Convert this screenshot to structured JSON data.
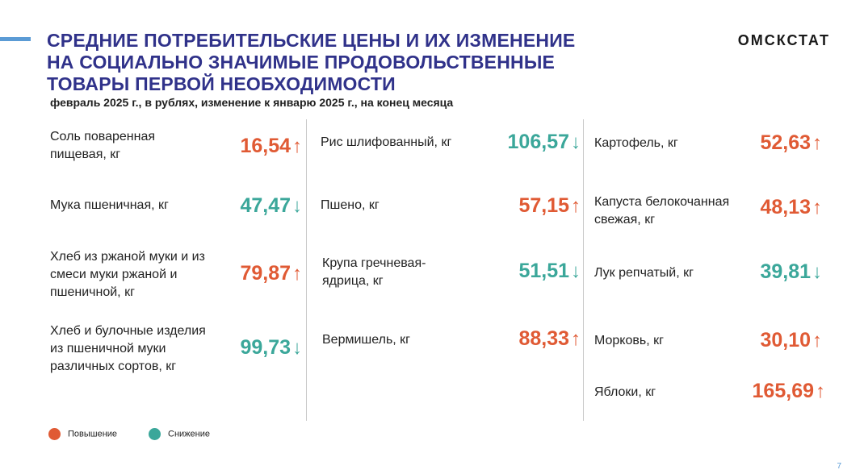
{
  "header": {
    "title_lines": [
      "СРЕДНИЕ ПОТРЕБИТЕЛЬСКИЕ ЦЕНЫ И ИХ ИЗМЕНЕНИЕ",
      "НА СОЦИАЛЬНО ЗНАЧИМЫЕ ПРОДОВОЛЬСТВЕННЫЕ",
      "ТОВАРЫ ПЕРВОЙ НЕОБХОДИМОСТИ"
    ],
    "brand": "ОМСКСТАТ",
    "subtitle": "февраль 2025 г., в рублях, изменение к январю 2025 г., на конец месяца"
  },
  "colors": {
    "title": "#30328a",
    "up": "#e05a34",
    "down": "#3ba79a",
    "accent": "#5b9bd5"
  },
  "columns": [
    {
      "items": [
        {
          "name": "Соль поваренная пищевая, кг",
          "price": "16,54",
          "direction": "up",
          "arrow": "↑"
        },
        {
          "name": "Мука пшеничная, кг",
          "price": "47,47",
          "direction": "down",
          "arrow": "↓"
        },
        {
          "name": "Хлеб из ржаной муки и из смеси муки ржаной и пшеничной, кг",
          "price": "79,87",
          "direction": "up",
          "arrow": "↑"
        },
        {
          "name": "Хлеб и булочные изделия из пшеничной муки различных сортов, кг",
          "price": "99,73",
          "direction": "down",
          "arrow": "↓"
        }
      ]
    },
    {
      "items": [
        {
          "name": "Рис шлифованный, кг",
          "price": "106,57",
          "direction": "down",
          "arrow": "↓"
        },
        {
          "name": "Пшено, кг",
          "price": "57,15",
          "direction": "up",
          "arrow": "↑"
        },
        {
          "name": "Крупа гречневая-ядрица, кг",
          "price": "51,51",
          "direction": "down",
          "arrow": "↓"
        },
        {
          "name": "Вермишель, кг",
          "price": "88,33",
          "direction": "up",
          "arrow": "↑"
        }
      ]
    },
    {
      "items": [
        {
          "name": "Картофель, кг",
          "price": "52,63",
          "direction": "up",
          "arrow": "↑"
        },
        {
          "name": "Капуста белокочанная свежая, кг",
          "price": "48,13",
          "direction": "up",
          "arrow": "↑"
        },
        {
          "name": "Лук репчатый, кг",
          "price": "39,81",
          "direction": "down",
          "arrow": "↓"
        },
        {
          "name": "Морковь, кг",
          "price": "30,10",
          "direction": "up",
          "arrow": "↑"
        },
        {
          "name": "Яблоки, кг",
          "price": "165,69",
          "direction": "up",
          "arrow": "↑"
        }
      ]
    }
  ],
  "legend": {
    "increase_label": "Повышение",
    "decrease_label": "Снижение"
  },
  "page_number": "7"
}
